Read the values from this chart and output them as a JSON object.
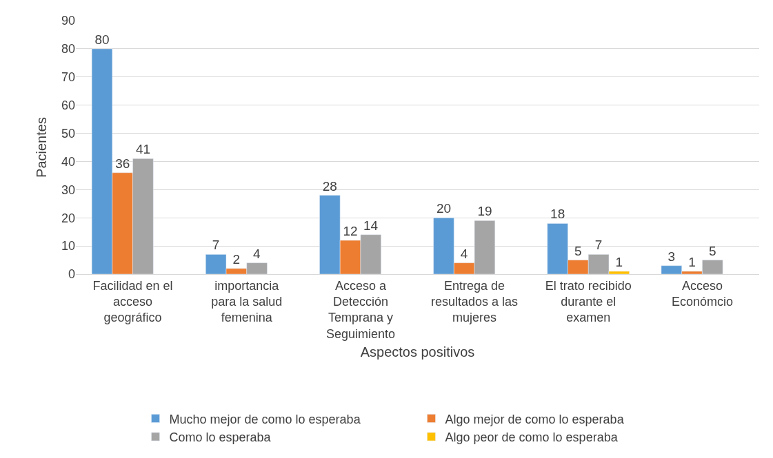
{
  "chart_data": {
    "type": "bar",
    "xlabel": "Aspectos positivos",
    "ylabel": "Pacientes",
    "categories": [
      "Facilidad en el\nacceso\ngeográfico",
      "importancia\npara la salud\nfemenina",
      "Acceso a\nDetección\nTemprana y\nSeguimiento",
      "Entrega de\nresultados a las\nmujeres",
      "El trato recibido\ndurante el\nexamen",
      "Acceso\nEconómcio"
    ],
    "series": [
      {
        "name": "Mucho mejor de como lo esperaba",
        "color": "#5b9bd5",
        "values": [
          80,
          7,
          28,
          20,
          18,
          3
        ]
      },
      {
        "name": "Algo mejor de como lo esperaba",
        "color": "#ed7d31",
        "values": [
          36,
          2,
          12,
          4,
          5,
          1
        ]
      },
      {
        "name": "Como lo esperaba",
        "color": "#a5a5a5",
        "values": [
          41,
          4,
          14,
          19,
          7,
          5
        ]
      },
      {
        "name": "Algo peor de como lo esperaba",
        "color": "#ffc000",
        "values": [
          null,
          null,
          null,
          null,
          1,
          null
        ]
      }
    ],
    "ylim": [
      0,
      90
    ],
    "yticks": [
      0,
      10,
      20,
      30,
      40,
      50,
      60,
      70,
      80,
      90
    ],
    "grid": "y",
    "legend": "bottom",
    "data_labels": true
  }
}
